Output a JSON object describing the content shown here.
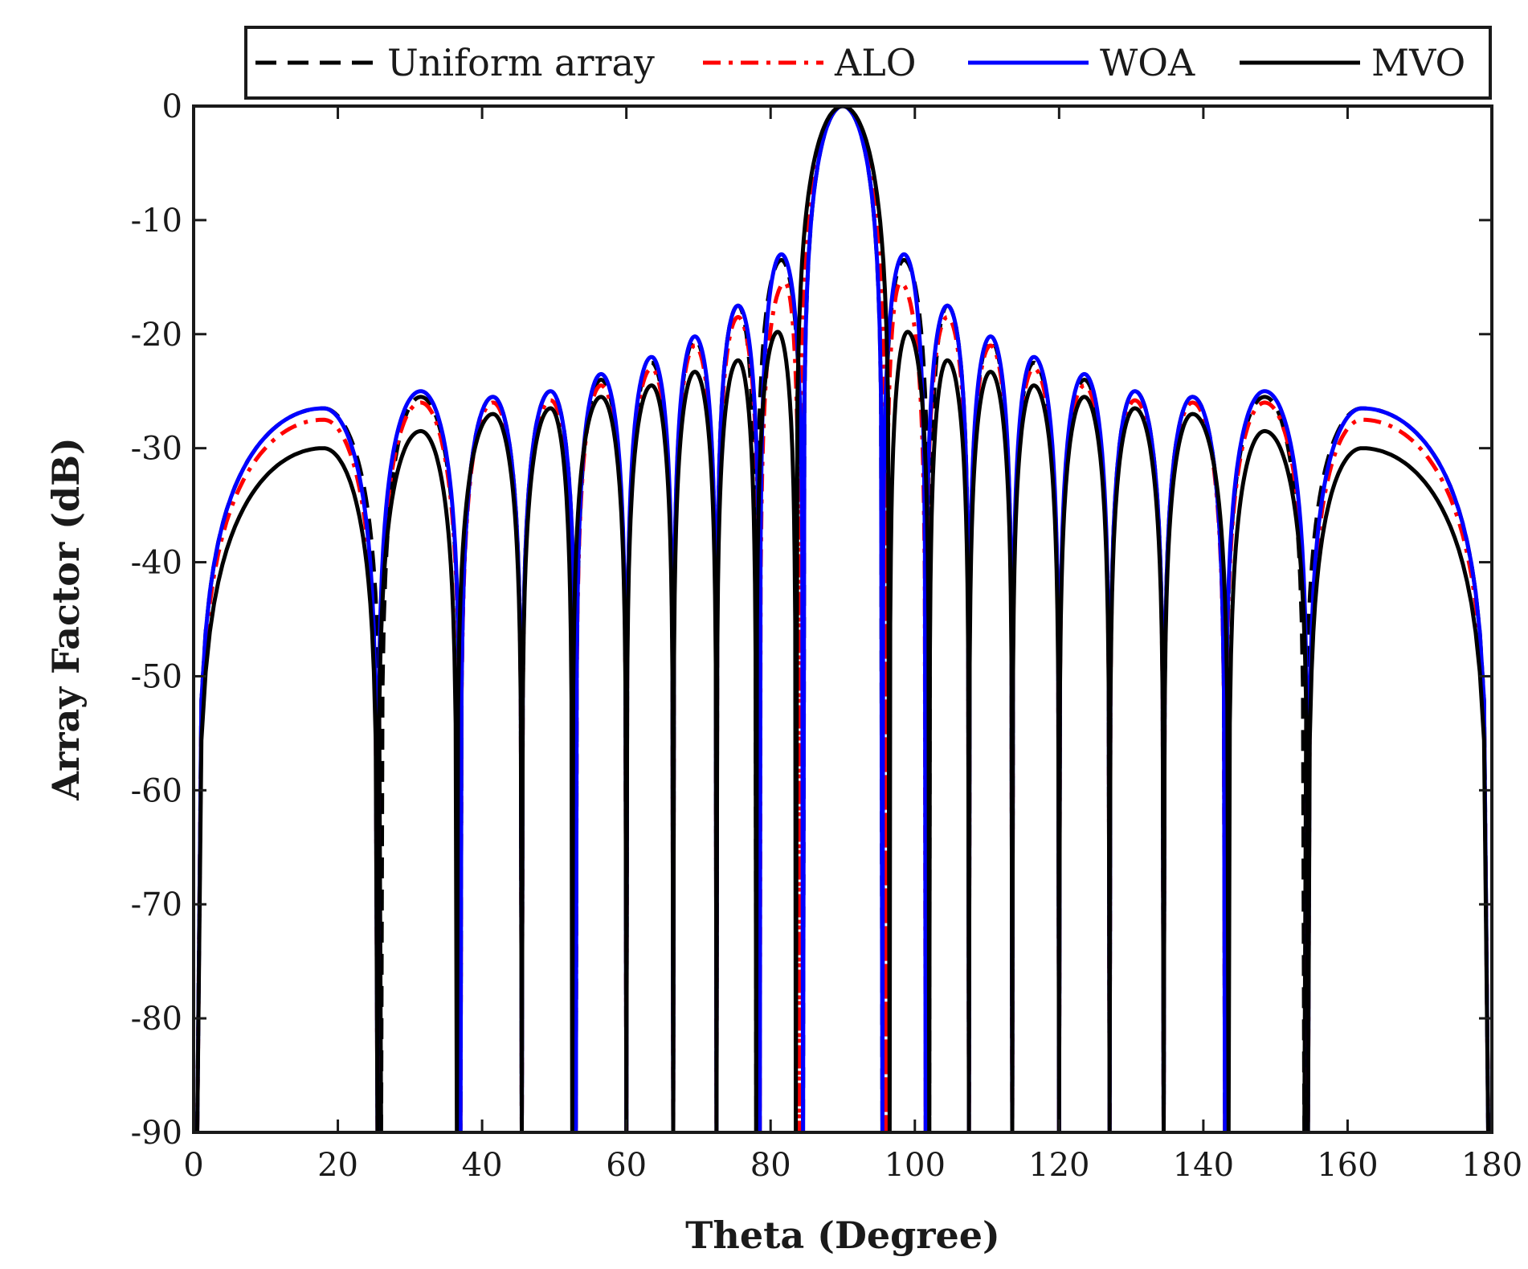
{
  "chart_data": {
    "type": "line",
    "title": "",
    "xlabel": "Theta (Degree)",
    "ylabel": "Array Factor (dB)",
    "xlim": [
      0,
      180
    ],
    "ylim": [
      -90,
      0
    ],
    "xticks": [
      0,
      20,
      40,
      60,
      80,
      100,
      120,
      140,
      160,
      180
    ],
    "yticks": [
      0,
      -10,
      -20,
      -30,
      -40,
      -50,
      -60,
      -70,
      -80,
      -90
    ],
    "grid": false,
    "legend_position": "top",
    "legend_orientation": "horizontal",
    "mainlobe_center": 90,
    "mainlobe_null_offset": 6,
    "series": [
      {
        "name": "Uniform array",
        "color": "#000000",
        "style": "dashed",
        "nulls": [
          0.5,
          26,
          37,
          45.5,
          53,
          60,
          66.5,
          72.5,
          78,
          84.5,
          95.5,
          102,
          107.5,
          113.5,
          120,
          127,
          134.5,
          143,
          154,
          179.5
        ],
        "peaks": [
          {
            "x": 18,
            "y": -26.5
          },
          {
            "x": 31.5,
            "y": -25.5
          },
          {
            "x": 41.5,
            "y": -25.5
          },
          {
            "x": 49.5,
            "y": -25
          },
          {
            "x": 56.5,
            "y": -24
          },
          {
            "x": 63.5,
            "y": -22.5
          },
          {
            "x": 69.5,
            "y": -20.5
          },
          {
            "x": 75.5,
            "y": -17.5
          },
          {
            "x": 81.5,
            "y": -13.5
          },
          {
            "x": 90,
            "y": 0
          },
          {
            "x": 98.5,
            "y": -13.5
          },
          {
            "x": 104.5,
            "y": -17.5
          },
          {
            "x": 110.5,
            "y": -20.5
          },
          {
            "x": 116.5,
            "y": -22.5
          },
          {
            "x": 123.5,
            "y": -24
          },
          {
            "x": 130.5,
            "y": -25
          },
          {
            "x": 138.5,
            "y": -25.5
          },
          {
            "x": 148.5,
            "y": -25.5
          },
          {
            "x": 162,
            "y": -26.5
          }
        ]
      },
      {
        "name": "ALO",
        "color": "#ff0000",
        "style": "dashdot",
        "nulls": [
          0.5,
          25.5,
          37,
          45.5,
          53,
          60,
          66.5,
          72.5,
          78.5,
          84,
          96,
          101.5,
          107.5,
          113.5,
          120,
          127,
          134.5,
          143,
          154.5,
          179.5
        ],
        "peaks": [
          {
            "x": 18,
            "y": -27.5
          },
          {
            "x": 31.5,
            "y": -26
          },
          {
            "x": 41.5,
            "y": -26
          },
          {
            "x": 49.5,
            "y": -25.8
          },
          {
            "x": 56.5,
            "y": -24.5
          },
          {
            "x": 63.5,
            "y": -23
          },
          {
            "x": 69.5,
            "y": -21
          },
          {
            "x": 75.5,
            "y": -18.5
          },
          {
            "x": 82,
            "y": -15.5
          },
          {
            "x": 90,
            "y": 0
          },
          {
            "x": 98,
            "y": -15.5
          },
          {
            "x": 104.5,
            "y": -18.5
          },
          {
            "x": 110.5,
            "y": -21
          },
          {
            "x": 116.5,
            "y": -23
          },
          {
            "x": 123.5,
            "y": -24.5
          },
          {
            "x": 130.5,
            "y": -25.8
          },
          {
            "x": 138.5,
            "y": -26
          },
          {
            "x": 148.5,
            "y": -26
          },
          {
            "x": 162,
            "y": -27.5
          }
        ]
      },
      {
        "name": "WOA",
        "color": "#0000ff",
        "style": "solid",
        "nulls": [
          0.5,
          25.5,
          37,
          45.5,
          53,
          60,
          66.5,
          72.5,
          78.5,
          84.5,
          95.5,
          101.5,
          107.5,
          113.5,
          120,
          127,
          134.5,
          143,
          154.5,
          179.5
        ],
        "peaks": [
          {
            "x": 18,
            "y": -26.5
          },
          {
            "x": 31.5,
            "y": -25
          },
          {
            "x": 41.5,
            "y": -25.5
          },
          {
            "x": 49.5,
            "y": -25
          },
          {
            "x": 56.5,
            "y": -23.5
          },
          {
            "x": 63.5,
            "y": -22
          },
          {
            "x": 69.5,
            "y": -20.2
          },
          {
            "x": 75.5,
            "y": -17.5
          },
          {
            "x": 81.5,
            "y": -13
          },
          {
            "x": 90,
            "y": 0
          },
          {
            "x": 98.5,
            "y": -13
          },
          {
            "x": 104.5,
            "y": -17.5
          },
          {
            "x": 110.5,
            "y": -20.2
          },
          {
            "x": 116.5,
            "y": -22
          },
          {
            "x": 123.5,
            "y": -23.5
          },
          {
            "x": 130.5,
            "y": -25
          },
          {
            "x": 138.5,
            "y": -25.5
          },
          {
            "x": 148.5,
            "y": -25
          },
          {
            "x": 162,
            "y": -26.5
          }
        ]
      },
      {
        "name": "MVO",
        "color": "#000000",
        "style": "solid",
        "nulls": [
          0.5,
          25.5,
          36.5,
          45.5,
          52.5,
          60,
          66.5,
          72.5,
          78,
          83.5,
          96.5,
          102,
          107.5,
          113.5,
          120,
          127,
          134.5,
          143.5,
          154.5,
          179.5
        ],
        "peaks": [
          {
            "x": 18,
            "y": -30
          },
          {
            "x": 31.5,
            "y": -28.5
          },
          {
            "x": 41.5,
            "y": -27
          },
          {
            "x": 49.5,
            "y": -26.5
          },
          {
            "x": 56.5,
            "y": -25.5
          },
          {
            "x": 63.5,
            "y": -24.5
          },
          {
            "x": 69.5,
            "y": -23.3
          },
          {
            "x": 75.5,
            "y": -22.3
          },
          {
            "x": 81,
            "y": -19.8
          },
          {
            "x": 90,
            "y": 0
          },
          {
            "x": 99,
            "y": -19.8
          },
          {
            "x": 104.5,
            "y": -22.3
          },
          {
            "x": 110.5,
            "y": -23.3
          },
          {
            "x": 116.5,
            "y": -24.5
          },
          {
            "x": 123.5,
            "y": -25.5
          },
          {
            "x": 130.5,
            "y": -26.5
          },
          {
            "x": 138.5,
            "y": -27
          },
          {
            "x": 148.5,
            "y": -28.5
          },
          {
            "x": 162,
            "y": -30
          }
        ]
      }
    ]
  }
}
